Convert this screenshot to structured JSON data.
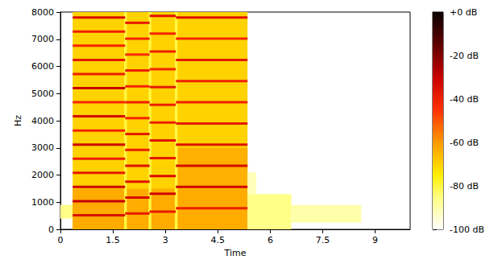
{
  "chart_data": {
    "type": "heatmap",
    "x_label": "Time",
    "y_label": "Hz",
    "xlim": [
      0,
      10.0
    ],
    "xticks": [
      0,
      1.5,
      3,
      4.5,
      6,
      7.5,
      9
    ],
    "ylim": [
      0,
      8000
    ],
    "yticks": [
      0,
      1000,
      2000,
      3000,
      4000,
      5000,
      6000,
      7000,
      8000
    ],
    "colorbar": {
      "range": [
        -100,
        0
      ],
      "ticks": [
        {
          "value": -100,
          "label": "-100 dB"
        },
        {
          "value": -80,
          "label": "-80 dB"
        },
        {
          "value": -60,
          "label": "-60 dB"
        },
        {
          "value": -40,
          "label": "-40 dB"
        },
        {
          "value": -20,
          "label": "-20 dB"
        },
        {
          "value": 0,
          "label": "+0 dB"
        }
      ]
    },
    "cells": [
      [
        0,
        0.35,
        400,
        900,
        -86
      ],
      [
        0.35,
        5.35,
        0,
        8000,
        -70
      ],
      [
        0.35,
        5.35,
        0,
        1500,
        -63
      ],
      [
        3.3,
        5.35,
        1500,
        3000,
        -64
      ],
      [
        1.82,
        1.9,
        0,
        8000,
        -80
      ],
      [
        2.52,
        2.6,
        0,
        8000,
        -80
      ],
      [
        3.27,
        3.35,
        0,
        8000,
        -80
      ],
      [
        5.35,
        6.6,
        0,
        1300,
        -86
      ],
      [
        6.6,
        8.6,
        250,
        900,
        -90
      ],
      [
        5.35,
        5.6,
        1300,
        2100,
        -92
      ]
    ],
    "harmonics": [
      {
        "t": [
          0.35,
          1.85
        ],
        "freqs": [
          520,
          1040,
          1560,
          2080,
          2600,
          3120,
          3640,
          4160,
          4680,
          5200,
          5720,
          6240,
          6760,
          7280,
          7800
        ],
        "db": [
          -35,
          -30,
          -32,
          -38,
          -40,
          -32,
          -42,
          -34,
          -42,
          -30,
          -40,
          -38,
          -42,
          -40,
          -34
        ]
      },
      {
        "t": [
          1.85,
          2.55
        ],
        "freqs": [
          585,
          1170,
          1755,
          2340,
          2925,
          3510,
          4095,
          4680,
          5265,
          5850,
          6435,
          7020,
          7605
        ],
        "db": [
          -38,
          -34,
          -36,
          -36,
          -40,
          -38,
          -42,
          -40,
          -42,
          -40,
          -44,
          -42,
          -38
        ]
      },
      {
        "t": [
          2.55,
          3.3
        ],
        "freqs": [
          655,
          1310,
          1965,
          2620,
          3275,
          3930,
          4585,
          5240,
          5895,
          6550,
          7205,
          7860
        ],
        "db": [
          -38,
          -32,
          -34,
          -38,
          -36,
          -40,
          -40,
          -38,
          -42,
          -40,
          -42,
          -36
        ]
      },
      {
        "t": [
          3.3,
          5.35
        ],
        "freqs": [
          780,
          1560,
          2340,
          3120,
          3900,
          4680,
          5460,
          6240,
          7020,
          7800
        ],
        "db": [
          -40,
          -32,
          -34,
          -36,
          -38,
          -40,
          -40,
          -38,
          -42,
          -36
        ]
      }
    ]
  }
}
